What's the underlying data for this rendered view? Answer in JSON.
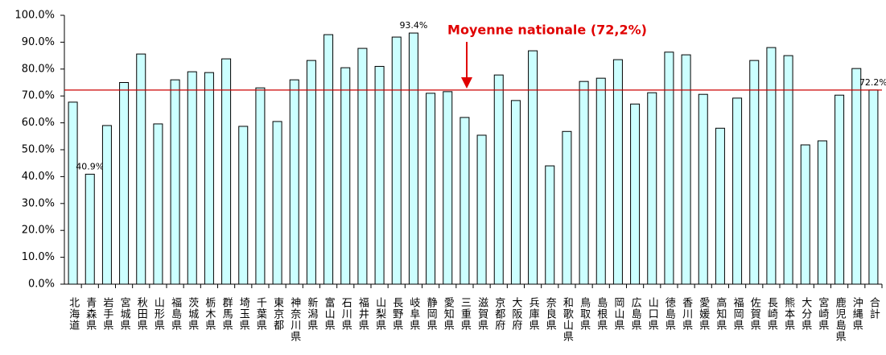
{
  "chart_data": {
    "type": "bar",
    "categories": [
      "北海道",
      "青森県",
      "岩手県",
      "宮城県",
      "秋田県",
      "山形県",
      "福島県",
      "茨城県",
      "栃木県",
      "群馬県",
      "埼玉県",
      "千葉県",
      "東京都",
      "神奈川県",
      "新潟県",
      "富山県",
      "石川県",
      "福井県",
      "山梨県",
      "長野県",
      "岐阜県",
      "静岡県",
      "愛知県",
      "三重県",
      "滋賀県",
      "京都府",
      "大阪府",
      "兵庫県",
      "奈良県",
      "和歌山県",
      "鳥取県",
      "島根県",
      "岡山県",
      "広島県",
      "山口県",
      "徳島県",
      "香川県",
      "愛媛県",
      "高知県",
      "福岡県",
      "佐賀県",
      "長崎県",
      "熊本県",
      "大分県",
      "宮崎県",
      "鹿児島県",
      "沖縄県",
      "合計"
    ],
    "values": [
      67.7,
      40.9,
      59,
      75,
      85.6,
      59.6,
      76,
      79,
      78.7,
      83.8,
      58.7,
      73,
      60.5,
      76,
      83.2,
      92.8,
      80.5,
      87.7,
      81,
      91.9,
      93.4,
      71,
      71.6,
      62,
      55.4,
      77.8,
      68.3,
      86.8,
      44,
      56.8,
      75.4,
      76.6,
      83.5,
      67,
      71.2,
      86.3,
      85.3,
      70.6,
      58,
      69.2,
      83.2,
      88,
      85,
      51.8,
      53.3,
      70.3,
      80.2,
      72.2
    ],
    "value_labels": [
      null,
      "40.9%",
      null,
      null,
      null,
      null,
      null,
      null,
      null,
      null,
      null,
      null,
      null,
      null,
      null,
      null,
      null,
      null,
      null,
      null,
      "93.4%",
      null,
      null,
      null,
      null,
      null,
      null,
      null,
      null,
      null,
      null,
      null,
      null,
      null,
      null,
      null,
      null,
      null,
      null,
      null,
      null,
      null,
      null,
      null,
      null,
      null,
      null,
      "72.2%"
    ],
    "color": "#ccffff",
    "ylim": [
      0,
      100
    ],
    "yticks": [
      {
        "value": 0,
        "label": "0.0%"
      },
      {
        "value": 10,
        "label": "10.0%"
      },
      {
        "value": 20,
        "label": "20.0%"
      },
      {
        "value": 30,
        "label": "30.0%"
      },
      {
        "value": 40,
        "label": "40.0%"
      },
      {
        "value": 50,
        "label": "50.0%"
      },
      {
        "value": 60,
        "label": "60.0%"
      },
      {
        "value": 70,
        "label": "70.0%"
      },
      {
        "value": 80,
        "label": "80.0%"
      },
      {
        "value": 90,
        "label": "90.0%"
      },
      {
        "value": 100,
        "label": "100.0%"
      }
    ],
    "reference_line": {
      "value": 72.2,
      "color": "#cc0000",
      "label": "Moyenne nationale (72,2%)"
    }
  }
}
